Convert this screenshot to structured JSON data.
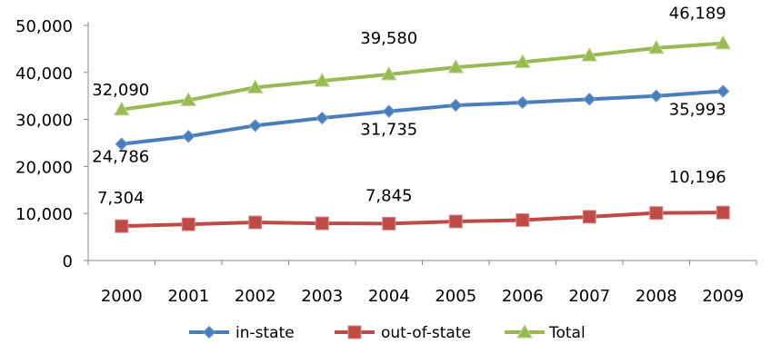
{
  "chart_data": {
    "type": "line",
    "title": "",
    "xlabel": "",
    "ylabel": "",
    "ylim": [
      0,
      50000
    ],
    "yticks": [
      "0",
      "10,000",
      "20,000",
      "30,000",
      "40,000",
      "50,000"
    ],
    "yticks_values": [
      0,
      10000,
      20000,
      30000,
      40000,
      50000
    ],
    "categories": [
      "2000",
      "2001",
      "2002",
      "2003",
      "2004",
      "2005",
      "2006",
      "2007",
      "2008",
      "2009"
    ],
    "grid": false,
    "legend_position": "bottom",
    "series": [
      {
        "name": "in-state",
        "color": "#4a7ebb",
        "marker": "diamond",
        "values": [
          24786,
          26400,
          28700,
          30300,
          31735,
          33000,
          33600,
          34300,
          35000,
          35993
        ]
      },
      {
        "name": "out-of-state",
        "color": "#be4b48",
        "marker": "square",
        "values": [
          7304,
          7700,
          8100,
          7900,
          7845,
          8300,
          8600,
          9300,
          10100,
          10196
        ]
      },
      {
        "name": "Total",
        "color": "#98b954",
        "marker": "triangle",
        "values": [
          32090,
          34100,
          36800,
          38200,
          39580,
          41100,
          42200,
          43600,
          45200,
          46189
        ]
      }
    ],
    "data_labels": [
      {
        "series": 0,
        "index": 0,
        "text": "24,786"
      },
      {
        "series": 0,
        "index": 4,
        "text": "31,735"
      },
      {
        "series": 0,
        "index": 9,
        "text": "35,993"
      },
      {
        "series": 1,
        "index": 0,
        "text": "7,304"
      },
      {
        "series": 1,
        "index": 4,
        "text": "7,845"
      },
      {
        "series": 1,
        "index": 9,
        "text": "10,196"
      },
      {
        "series": 2,
        "index": 0,
        "text": "32,090"
      },
      {
        "series": 2,
        "index": 4,
        "text": "39,580"
      },
      {
        "series": 2,
        "index": 9,
        "text": "46,189"
      }
    ]
  }
}
